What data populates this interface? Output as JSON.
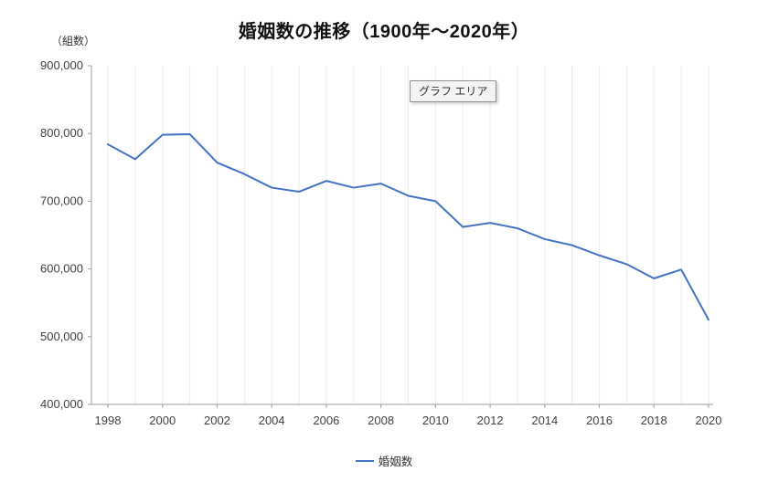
{
  "chart": {
    "title": "婚姻数の推移（1900年〜2020年）",
    "unit_label": "（組数）",
    "area_tooltip": "グラフ エリア",
    "legend_label": "婚姻数"
  },
  "chart_data": {
    "type": "line",
    "title": "婚姻数の推移（1900年〜2020年）",
    "xlabel": "",
    "ylabel": "（組数）",
    "x": [
      1998,
      1999,
      2000,
      2001,
      2002,
      2003,
      2004,
      2005,
      2006,
      2007,
      2008,
      2009,
      2010,
      2011,
      2012,
      2013,
      2014,
      2015,
      2016,
      2017,
      2018,
      2019,
      2020
    ],
    "series": [
      {
        "name": "婚姻数",
        "values": [
          784000,
          762000,
          798000,
          799000,
          757000,
          740000,
          720000,
          714000,
          730000,
          720000,
          726000,
          708000,
          700000,
          662000,
          668000,
          660000,
          644000,
          635000,
          620000,
          607000,
          586000,
          599000,
          525000
        ]
      }
    ],
    "ylim": [
      400000,
      900000
    ],
    "y_tick_step": 100000,
    "y_tick_labels": [
      "400,000",
      "500,000",
      "600,000",
      "700,000",
      "800,000",
      "900,000"
    ],
    "x_tick_labels": [
      "1998",
      "2000",
      "2002",
      "2004",
      "2006",
      "2008",
      "2010",
      "2012",
      "2014",
      "2016",
      "2018",
      "2020"
    ],
    "grid": "vertical-light",
    "legend_position": "bottom",
    "line_color": "#4472C4",
    "axis_color": "#9e9e9e",
    "grid_color": "#ededed",
    "tick_label_color": "#404040"
  }
}
